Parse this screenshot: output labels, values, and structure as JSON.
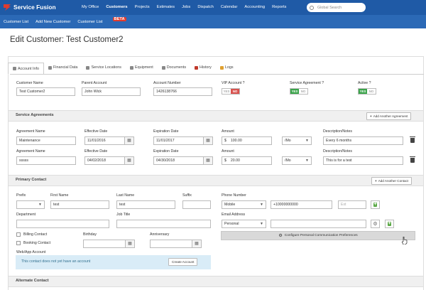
{
  "brand": {
    "name": "Service Fusion"
  },
  "nav": {
    "items": [
      "My Office",
      "Customers",
      "Projects",
      "Estimates",
      "Jobs",
      "Dispatch",
      "Calendar",
      "Accounting",
      "Reports"
    ],
    "active": "Customers"
  },
  "global_search": {
    "placeholder": "Global Search"
  },
  "subnav": {
    "customer_list": "Customer List",
    "add_new_customer": "Add New Customer",
    "customer_list_beta": "Customer List",
    "beta_badge": "BETA"
  },
  "page": {
    "title": "Edit Customer: Test Customer2"
  },
  "tabs": [
    "Account Info",
    "Financial Data",
    "Service Locations",
    "Equipment",
    "Documents",
    "History",
    "Logs"
  ],
  "account": {
    "customer_name_label": "Customer Name",
    "customer_name": "Test Customer2",
    "parent_account_label": "Parent Account",
    "parent_account": "John Wick",
    "account_number_label": "Account Number",
    "account_number": "1426138766",
    "vip_label": "VIP Account ?",
    "vip_yes": "YES",
    "vip_no": "NO",
    "service_agreement_label": "Service Agreement ?",
    "sa_yes": "YES",
    "sa_no": "NO",
    "active_label": "Active ?",
    "active_yes": "YES",
    "active_no": "NO"
  },
  "service_agreements": {
    "title": "Service Agreements",
    "add_button": "Add Another Agreement",
    "labels": {
      "name": "Agreement Name",
      "effective": "Effective Date",
      "expiration": "Expiration Date",
      "amount": "Amount",
      "notes": "Description/Notes"
    },
    "currency": "$",
    "rows": [
      {
        "name": "Maintenance",
        "effective": "11/01/2016",
        "expiration": "11/01/2017",
        "amount": "100.00",
        "period": "/Mo",
        "notes": "Every 6 months"
      },
      {
        "name": "sssss",
        "effective": "04/02/2018",
        "expiration": "04/30/2018",
        "amount": "20.00",
        "period": "/Mo",
        "notes": "This is for a test"
      }
    ]
  },
  "primary_contact": {
    "title": "Primary Contact",
    "add_button": "Add Another Contact",
    "prefix_label": "Prefix",
    "first_name_label": "First Name",
    "first_name": "test",
    "last_name_label": "Last Name",
    "last_name": "test",
    "suffix_label": "Suffix",
    "phone_label": "Phone Number",
    "phone_type": "Mobile",
    "phone_number": "+10000000000",
    "ext_placeholder": "Ext",
    "department_label": "Department",
    "job_title_label": "Job Title",
    "email_label": "Email Address",
    "email_type": "Personal",
    "billing_contact": "Billing Contact",
    "booking_contact": "Booking Contact",
    "birthday_label": "Birthday",
    "anniversary_label": "Anniversary",
    "configure_button": "Configure Personal Communication Preferences",
    "web_app_label": "Web/App Account",
    "web_app_message": "This contact does not yet have an account",
    "create_account_button": "Create Account"
  },
  "alternate_contact": {
    "title": "Alternate Contact"
  }
}
